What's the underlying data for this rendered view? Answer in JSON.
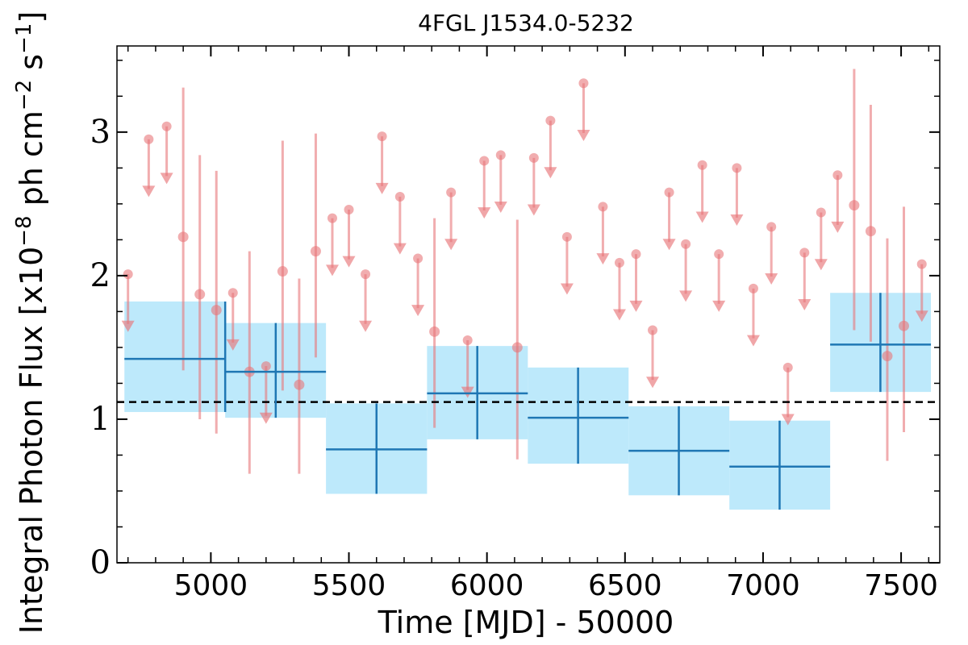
{
  "chart_data": {
    "type": "scatter",
    "title": "4FGL J1534.0-5232",
    "xlabel": "Time [MJD] - 50000",
    "ylabel": "Integral Photon Flux [x10^-8 ph cm^-2 s^-1]",
    "ylabel_parts": {
      "pre": "Integral Photon Flux [x10",
      "exp1": "−8",
      "mid": " ph cm",
      "exp2": "−2",
      "mid2": " s",
      "exp3": "−1",
      "post": "]"
    },
    "xlim": [
      4660,
      7640
    ],
    "ylim": [
      0,
      3.6
    ],
    "xticks": [
      5000,
      5500,
      6000,
      6500,
      7000,
      7500
    ],
    "yticks": [
      0,
      1,
      2,
      3
    ],
    "grid": false,
    "mean_line": 1.12,
    "colors": {
      "long_bins": "#1f77b4",
      "long_band": "#bde9fb",
      "short_bins": "#e8767a",
      "mean_line": "#000000"
    },
    "long_bins": [
      {
        "x": 5052,
        "y": 1.42,
        "xlo": 4687,
        "xhi": 5052,
        "ylo": 1.05,
        "yhi": 1.82
      },
      {
        "x": 5235,
        "y": 1.33,
        "xlo": 5052,
        "xhi": 5417,
        "ylo": 1.01,
        "yhi": 1.67
      },
      {
        "x": 5600,
        "y": 0.79,
        "xlo": 5417,
        "xhi": 5783,
        "ylo": 0.48,
        "yhi": 1.11
      },
      {
        "x": 5965,
        "y": 1.18,
        "xlo": 5783,
        "xhi": 6148,
        "ylo": 0.86,
        "yhi": 1.51
      },
      {
        "x": 6330,
        "y": 1.01,
        "xlo": 6148,
        "xhi": 6513,
        "ylo": 0.69,
        "yhi": 1.36
      },
      {
        "x": 6695,
        "y": 0.78,
        "xlo": 6513,
        "xhi": 6878,
        "ylo": 0.47,
        "yhi": 1.09
      },
      {
        "x": 7060,
        "y": 0.67,
        "xlo": 6878,
        "xhi": 7243,
        "ylo": 0.37,
        "yhi": 0.99
      },
      {
        "x": 7425,
        "y": 1.52,
        "xlo": 7243,
        "xhi": 7608,
        "ylo": 1.19,
        "yhi": 1.88
      }
    ],
    "short_detections": [
      {
        "x": 4900,
        "y": 2.27,
        "ylo": 1.34,
        "yhi": 3.31
      },
      {
        "x": 4960,
        "y": 1.87,
        "ylo": 1.0,
        "yhi": 2.84
      },
      {
        "x": 5020,
        "y": 1.76,
        "ylo": 0.9,
        "yhi": 2.73
      },
      {
        "x": 5140,
        "y": 1.33,
        "ylo": 0.62,
        "yhi": 2.17
      },
      {
        "x": 5260,
        "y": 2.03,
        "ylo": 1.2,
        "yhi": 2.94
      },
      {
        "x": 5320,
        "y": 1.24,
        "ylo": 0.62,
        "yhi": 1.98
      },
      {
        "x": 5380,
        "y": 2.17,
        "ylo": 1.43,
        "yhi": 2.99
      },
      {
        "x": 5810,
        "y": 1.61,
        "ylo": 0.94,
        "yhi": 2.4
      },
      {
        "x": 6110,
        "y": 1.5,
        "ylo": 0.72,
        "yhi": 2.39
      },
      {
        "x": 7330,
        "y": 2.49,
        "ylo": 1.62,
        "yhi": 3.44
      },
      {
        "x": 7390,
        "y": 2.31,
        "ylo": 1.54,
        "yhi": 3.19
      },
      {
        "x": 7450,
        "y": 1.44,
        "ylo": 0.71,
        "yhi": 2.26
      },
      {
        "x": 7510,
        "y": 1.65,
        "ylo": 0.91,
        "yhi": 2.48
      }
    ],
    "short_upper_limits": [
      {
        "x": 4700,
        "y": 2.01
      },
      {
        "x": 4775,
        "y": 2.95
      },
      {
        "x": 4840,
        "y": 3.04
      },
      {
        "x": 5080,
        "y": 1.88
      },
      {
        "x": 5200,
        "y": 1.37
      },
      {
        "x": 5440,
        "y": 2.4
      },
      {
        "x": 5500,
        "y": 2.46
      },
      {
        "x": 5560,
        "y": 2.01
      },
      {
        "x": 5620,
        "y": 2.97
      },
      {
        "x": 5685,
        "y": 2.55
      },
      {
        "x": 5750,
        "y": 2.12
      },
      {
        "x": 5870,
        "y": 2.58
      },
      {
        "x": 5930,
        "y": 1.55
      },
      {
        "x": 5990,
        "y": 2.8
      },
      {
        "x": 6050,
        "y": 2.84
      },
      {
        "x": 6170,
        "y": 2.82
      },
      {
        "x": 6230,
        "y": 3.08
      },
      {
        "x": 6290,
        "y": 2.27
      },
      {
        "x": 6350,
        "y": 3.34
      },
      {
        "x": 6420,
        "y": 2.48
      },
      {
        "x": 6480,
        "y": 2.09
      },
      {
        "x": 6540,
        "y": 2.15
      },
      {
        "x": 6600,
        "y": 1.62
      },
      {
        "x": 6660,
        "y": 2.58
      },
      {
        "x": 6720,
        "y": 2.22
      },
      {
        "x": 6780,
        "y": 2.77
      },
      {
        "x": 6840,
        "y": 2.15
      },
      {
        "x": 6905,
        "y": 2.75
      },
      {
        "x": 6965,
        "y": 1.91
      },
      {
        "x": 7030,
        "y": 2.34
      },
      {
        "x": 7090,
        "y": 1.36
      },
      {
        "x": 7150,
        "y": 2.16
      },
      {
        "x": 7210,
        "y": 2.44
      },
      {
        "x": 7270,
        "y": 2.7
      },
      {
        "x": 7575,
        "y": 2.08
      }
    ]
  }
}
